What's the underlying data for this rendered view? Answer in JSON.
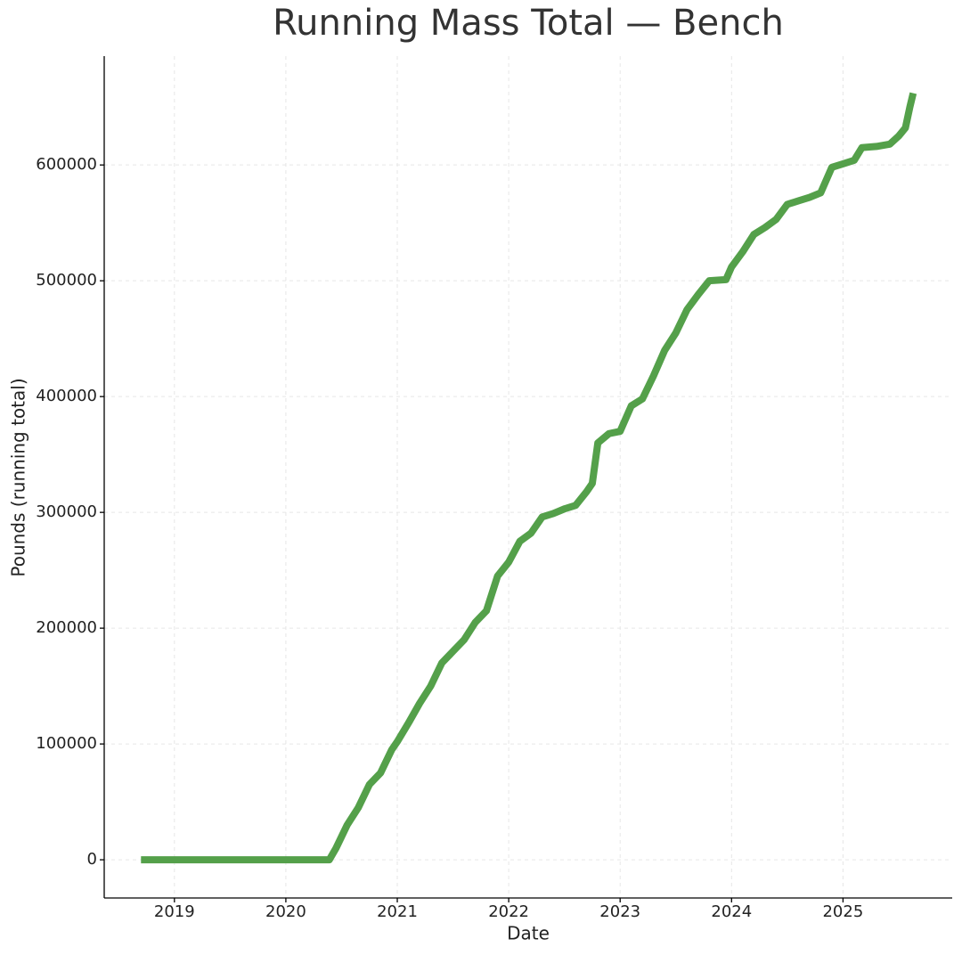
{
  "chart_data": {
    "type": "line",
    "title": "Running Mass Total — Bench",
    "xlabel": "Date",
    "ylabel": "Pounds (running total)",
    "xlim": [
      2018.37,
      2025.98
    ],
    "ylim": [
      -33000,
      694000
    ],
    "xticks": [
      2019,
      2020,
      2021,
      2022,
      2023,
      2024,
      2025
    ],
    "yticks": [
      0,
      100000,
      200000,
      300000,
      400000,
      500000,
      600000
    ],
    "grid": true,
    "series": [
      {
        "color": "#54a04a",
        "x": [
          2018.7,
          2020.39,
          2020.45,
          2020.55,
          2020.65,
          2020.75,
          2020.85,
          2020.95,
          2021.0,
          2021.1,
          2021.2,
          2021.3,
          2021.4,
          2021.5,
          2021.6,
          2021.7,
          2021.8,
          2021.9,
          2022.0,
          2022.1,
          2022.2,
          2022.3,
          2022.4,
          2022.5,
          2022.6,
          2022.7,
          2022.75,
          2022.8,
          2022.9,
          2023.0,
          2023.1,
          2023.2,
          2023.3,
          2023.4,
          2023.5,
          2023.6,
          2023.7,
          2023.8,
          2023.95,
          2024.0,
          2024.1,
          2024.2,
          2024.3,
          2024.4,
          2024.5,
          2024.6,
          2024.7,
          2024.8,
          2024.9,
          2025.0,
          2025.1,
          2025.17,
          2025.3,
          2025.42,
          2025.5,
          2025.56,
          2025.6,
          2025.63
        ],
        "values": [
          0,
          0,
          10000,
          30000,
          45000,
          65000,
          75000,
          95000,
          102000,
          118000,
          135000,
          150000,
          170000,
          180000,
          190000,
          205000,
          215000,
          245000,
          257000,
          275000,
          282000,
          296000,
          299000,
          303000,
          306000,
          318000,
          325000,
          360000,
          368000,
          370000,
          392000,
          398000,
          418000,
          440000,
          455000,
          475000,
          488000,
          500000,
          501000,
          512000,
          525000,
          540000,
          546000,
          553000,
          566000,
          569000,
          572000,
          576000,
          598000,
          601000,
          604000,
          615000,
          616000,
          618000,
          625000,
          632000,
          650000,
          662000
        ]
      }
    ]
  }
}
